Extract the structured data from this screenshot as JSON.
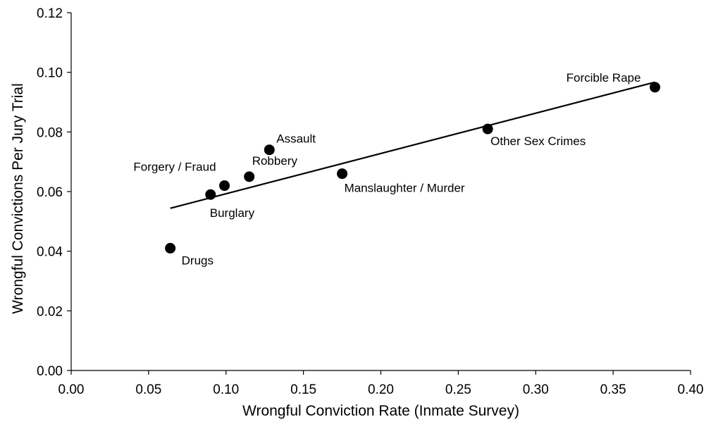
{
  "chart_data": {
    "type": "scatter",
    "title": "",
    "xlabel": "Wrongful Conviction Rate (Inmate Survey)",
    "ylabel": "Wrongful Convictions Per Jury Trial",
    "xlim": [
      0,
      0.4
    ],
    "ylim": [
      0,
      0.12
    ],
    "x_ticks": [
      "0.00",
      "0.05",
      "0.10",
      "0.15",
      "0.20",
      "0.25",
      "0.30",
      "0.35",
      "0.40"
    ],
    "y_ticks": [
      "0.00",
      "0.02",
      "0.04",
      "0.06",
      "0.08",
      "0.10",
      "0.12"
    ],
    "grid": false,
    "legend": "none",
    "marker_color": "#000000",
    "points": [
      {
        "label": "Drugs",
        "x": 0.064,
        "y": 0.041
      },
      {
        "label": "Burglary",
        "x": 0.09,
        "y": 0.059
      },
      {
        "label": "Forgery / Fraud",
        "x": 0.099,
        "y": 0.062
      },
      {
        "label": "Robbery",
        "x": 0.115,
        "y": 0.065
      },
      {
        "label": "Assault",
        "x": 0.128,
        "y": 0.074
      },
      {
        "label": "Manslaughter / Murder",
        "x": 0.175,
        "y": 0.066
      },
      {
        "label": "Other Sex Crimes",
        "x": 0.269,
        "y": 0.081
      },
      {
        "label": "Forcible Rape",
        "x": 0.377,
        "y": 0.095
      }
    ],
    "trendline": {
      "x": [
        0.064,
        0.377
      ],
      "y": [
        0.0544,
        0.0967
      ]
    }
  }
}
